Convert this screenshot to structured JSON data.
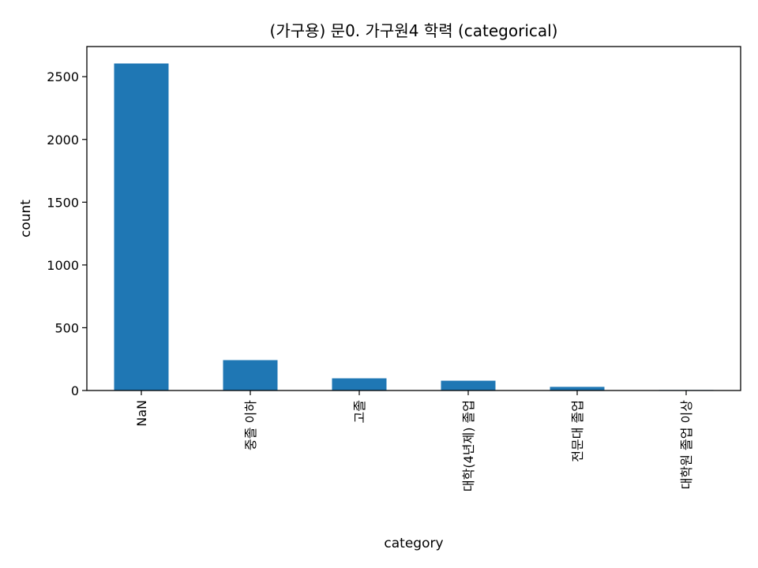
{
  "chart_data": {
    "type": "bar",
    "title": "(가구용) 문0. 가구원4 학력 (categorical)",
    "xlabel": "category",
    "ylabel": "count",
    "categories": [
      "NaN",
      "중졸 이하",
      "고졸",
      "대학(4년제) 졸업",
      "전문대 졸업",
      "대학원 졸업 이상"
    ],
    "values": [
      2605,
      242,
      97,
      78,
      29,
      4
    ],
    "ylim": [
      0,
      2740
    ],
    "yticks": [
      0,
      500,
      1000,
      1500,
      2000,
      2500
    ],
    "bar_color": "#1f77b4",
    "grid": false
  }
}
